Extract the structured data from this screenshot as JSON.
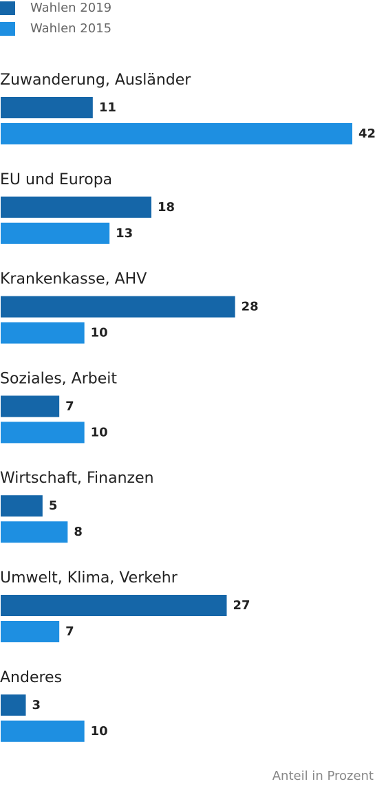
{
  "chart_data": {
    "type": "bar",
    "orientation": "horizontal",
    "categories": [
      "Zuwanderung, Ausländer",
      "EU und Europa",
      "Krankenkasse, AHV",
      "Soziales, Arbeit",
      "Wirtschaft, Finanzen",
      "Umwelt, Klima, Verkehr",
      "Anderes"
    ],
    "series": [
      {
        "name": "Wahlen 2019",
        "color": "#1566a8",
        "values": [
          11,
          18,
          28,
          7,
          5,
          27,
          3
        ]
      },
      {
        "name": "Wahlen 2015",
        "color": "#1e8fe1",
        "values": [
          42,
          13,
          10,
          10,
          8,
          7,
          10
        ]
      }
    ],
    "note": "Anteil in Prozent"
  }
}
